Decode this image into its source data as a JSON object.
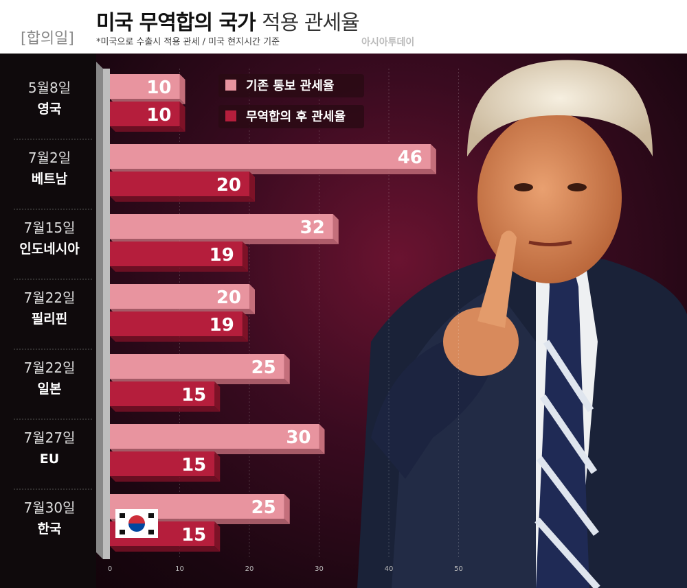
{
  "header": {
    "title_strong": "미국 무역합의 국가",
    "title_light": "적용 관세율",
    "date_header": "[합의일]",
    "subtitle": "*미국으로 수출시 적용 관세 / 미국 현지시간 기준",
    "source": "아시아투데이"
  },
  "chart_data": {
    "type": "bar",
    "orientation": "horizontal",
    "title": "미국 무역합의 국가 적용 관세율",
    "subtitle": "*미국으로 수출시 적용 관세 / 미국 현지시간 기준",
    "categories": [
      {
        "date": "5월8일",
        "country": "영국"
      },
      {
        "date": "7월2일",
        "country": "베트남"
      },
      {
        "date": "7월15일",
        "country": "인도네시아"
      },
      {
        "date": "7월22일",
        "country": "필리핀"
      },
      {
        "date": "7월22일",
        "country": "일본"
      },
      {
        "date": "7월27일",
        "country": "EU"
      },
      {
        "date": "7월30일",
        "country": "한국"
      }
    ],
    "series": [
      {
        "name": "기존 통보 관세율",
        "color": "#e8949f",
        "values": [
          10,
          46,
          32,
          20,
          25,
          30,
          25
        ]
      },
      {
        "name": "무역합의 후 관세율",
        "color": "#b51e3c",
        "values": [
          10,
          20,
          19,
          19,
          15,
          15,
          15
        ]
      }
    ],
    "xlim": [
      0,
      50
    ],
    "xticks": [
      0,
      10,
      20,
      30,
      40,
      50
    ],
    "grid": true,
    "legend_position": "top-center"
  }
}
